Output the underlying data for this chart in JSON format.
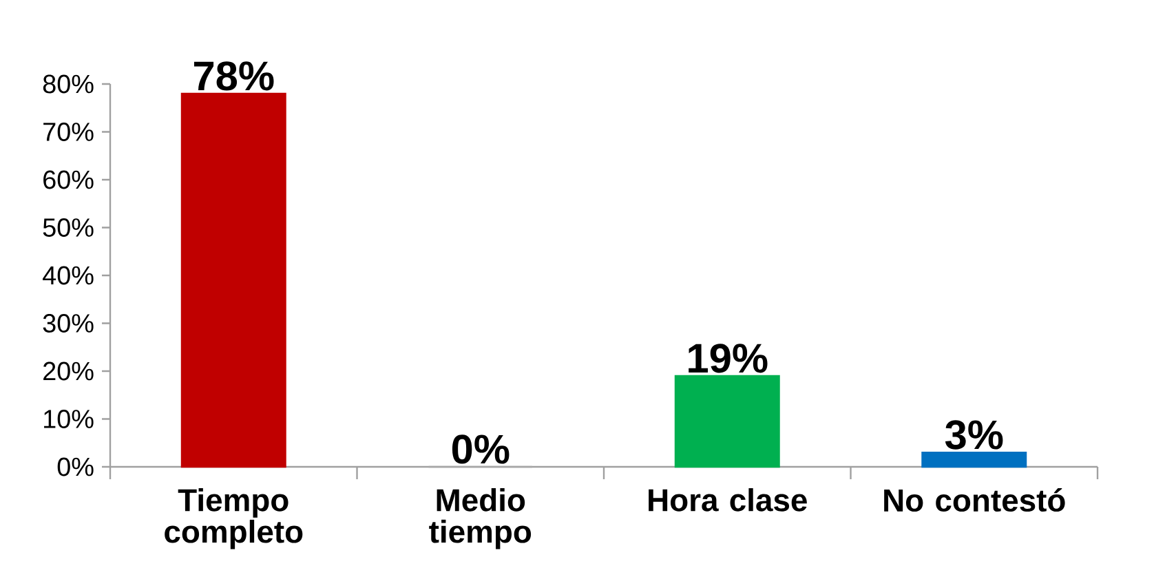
{
  "chart_data": {
    "type": "bar",
    "categories": [
      "Tiempo completo",
      "Medio tiempo",
      "Hora clase",
      "No contestó"
    ],
    "values": [
      78,
      0,
      19,
      3
    ],
    "colors": [
      "#c00000",
      "#a6a6a6",
      "#00b050",
      "#0070c0"
    ],
    "value_labels": [
      "78%",
      "0%",
      "19%",
      "3%"
    ],
    "ylim": [
      0,
      80
    ],
    "yticks": [
      {
        "value": 0,
        "label": "0%"
      },
      {
        "value": 10,
        "label": "10%"
      },
      {
        "value": 20,
        "label": "20%"
      },
      {
        "value": 30,
        "label": "30%"
      },
      {
        "value": 40,
        "label": "40%"
      },
      {
        "value": 50,
        "label": "50%"
      },
      {
        "value": 60,
        "label": "60%"
      },
      {
        "value": 70,
        "label": "70%"
      },
      {
        "value": 80,
        "label": "80%"
      }
    ]
  }
}
